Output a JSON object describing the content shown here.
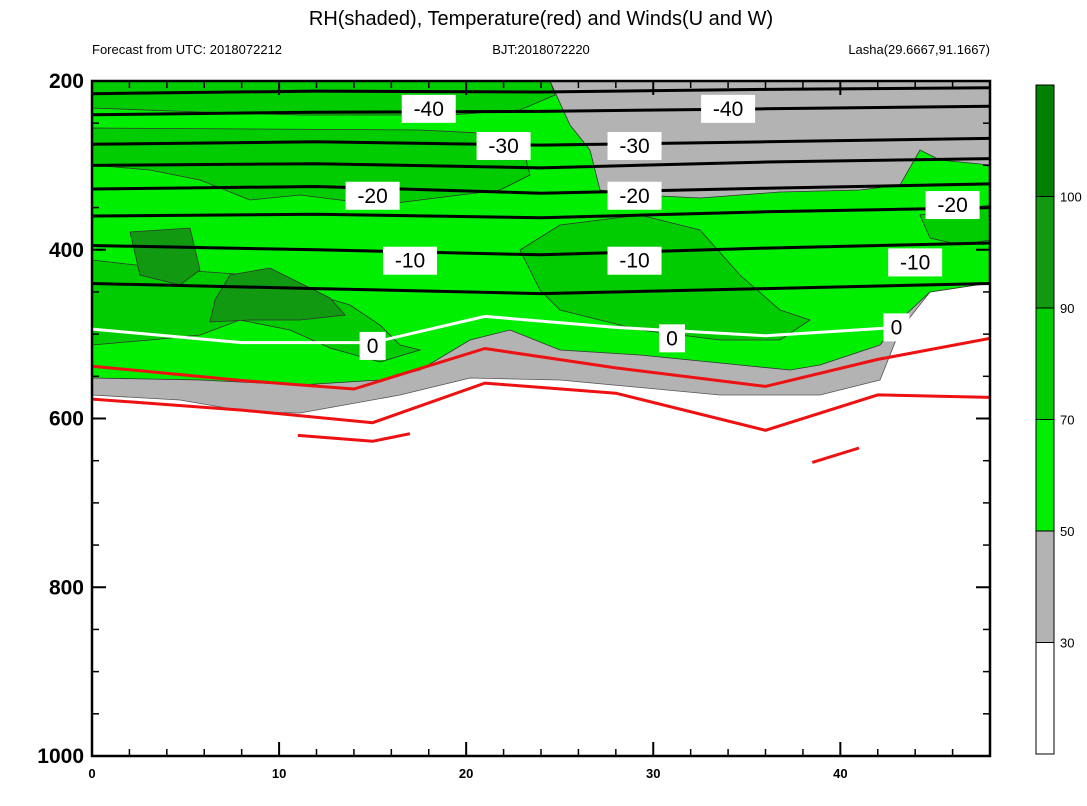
{
  "title": "RH(shaded), Temperature(red) and Winds(U and W)",
  "header": {
    "left": "Forecast from UTC: 2018072212",
    "center": "BJT:2018072220",
    "right": "Lasha(29.6667,91.1667)"
  },
  "chart_data": {
    "type": "contour",
    "x_range": [
      0,
      48
    ],
    "y_range": [
      200,
      1000
    ],
    "y_reversed": true,
    "x_ticks": [
      0,
      10,
      20,
      30,
      40
    ],
    "y_ticks": [
      200,
      400,
      600,
      800,
      1000
    ],
    "colorbar": {
      "ticks": [
        30,
        50,
        70,
        90,
        100
      ],
      "colors": [
        "#ffffff",
        "#b3b3b3",
        "#00ee00",
        "#00cc00",
        "#119911",
        "#008000"
      ]
    },
    "temperature_isotherms": [
      {
        "label": "-40",
        "points": [
          [
            0,
            215
          ],
          [
            12,
            212
          ],
          [
            24,
            213
          ],
          [
            36,
            210
          ],
          [
            48,
            208
          ]
        ],
        "label_at": [
          18,
          233
        ],
        "color": "#000000"
      },
      {
        "label": "-40",
        "points": [
          [
            0,
            240
          ],
          [
            12,
            237
          ],
          [
            24,
            236
          ],
          [
            36,
            233
          ],
          [
            48,
            230
          ]
        ],
        "label_at": [
          34,
          233
        ],
        "color": "#000000"
      },
      {
        "label": "-30",
        "points": [
          [
            0,
            275
          ],
          [
            12,
            272
          ],
          [
            24,
            276
          ],
          [
            36,
            272
          ],
          [
            48,
            268
          ]
        ],
        "label_at": [
          22,
          277
        ],
        "color": "#000000"
      },
      {
        "label": "-30",
        "points": [
          [
            0,
            300
          ],
          [
            12,
            298
          ],
          [
            24,
            303
          ],
          [
            36,
            296
          ],
          [
            48,
            292
          ]
        ],
        "label_at": [
          29,
          277
        ],
        "color": "#000000"
      },
      {
        "label": "-20",
        "points": [
          [
            0,
            328
          ],
          [
            12,
            325
          ],
          [
            24,
            333
          ],
          [
            36,
            327
          ],
          [
            48,
            322
          ]
        ],
        "label_at": [
          15,
          336
        ],
        "color": "#000000"
      },
      {
        "label": "-20",
        "points": [
          [
            0,
            360
          ],
          [
            12,
            358
          ],
          [
            24,
            362
          ],
          [
            36,
            355
          ],
          [
            48,
            350
          ]
        ],
        "label_at": [
          29,
          336
        ],
        "color": "#000000"
      },
      {
        "label": "-20",
        "points": [
          [
            0,
            395
          ],
          [
            12,
            400
          ],
          [
            24,
            406
          ],
          [
            36,
            398
          ],
          [
            48,
            392
          ]
        ],
        "label_at": [
          46,
          347
        ],
        "color": "#000000"
      },
      {
        "label": "-10",
        "points": [
          [
            0,
            440
          ],
          [
            12,
            446
          ],
          [
            24,
            452
          ],
          [
            36,
            446
          ],
          [
            48,
            440
          ]
        ],
        "label_at": [
          17,
          413
        ],
        "color": "#000000"
      },
      {
        "label": "-10",
        "points": [
          [
            0,
            440
          ],
          [
            12,
            446
          ],
          [
            24,
            452
          ],
          [
            36,
            446
          ],
          [
            48,
            440
          ]
        ],
        "label_at": [
          29,
          413
        ],
        "color": "#000000"
      },
      {
        "label": "-10",
        "points": [
          [
            0,
            440
          ],
          [
            12,
            446
          ],
          [
            24,
            452
          ],
          [
            36,
            446
          ],
          [
            48,
            440
          ]
        ],
        "label_at": [
          44,
          415
        ],
        "color": "#000000"
      },
      {
        "label": "0",
        "points": [
          [
            0,
            494
          ],
          [
            8,
            510
          ],
          [
            15,
            510
          ],
          [
            21,
            479
          ],
          [
            28,
            492
          ],
          [
            36,
            502
          ],
          [
            43,
            492
          ],
          [
            48,
            478
          ]
        ],
        "label_at": [
          15,
          514
        ],
        "color": "#ffffff"
      },
      {
        "label": "0",
        "points": [
          [
            0,
            494
          ],
          [
            8,
            510
          ],
          [
            15,
            510
          ],
          [
            21,
            479
          ],
          [
            28,
            492
          ],
          [
            36,
            502
          ],
          [
            43,
            492
          ],
          [
            48,
            478
          ]
        ],
        "label_at": [
          31,
          505
        ],
        "color": "#ffffff"
      },
      {
        "label": "0",
        "points": [
          [
            0,
            494
          ],
          [
            8,
            510
          ],
          [
            15,
            510
          ],
          [
            21,
            479
          ],
          [
            28,
            492
          ],
          [
            36,
            502
          ],
          [
            43,
            492
          ],
          [
            48,
            478
          ]
        ],
        "label_at": [
          43,
          492
        ],
        "color": "#ffffff"
      }
    ],
    "red_isotherms": [
      {
        "points": [
          [
            0,
            538
          ],
          [
            8,
            555
          ],
          [
            14,
            565
          ],
          [
            21,
            517
          ],
          [
            28,
            540
          ],
          [
            36,
            562
          ],
          [
            42,
            530
          ],
          [
            48,
            505
          ]
        ]
      },
      {
        "points": [
          [
            0,
            577
          ],
          [
            8,
            590
          ],
          [
            15,
            605
          ],
          [
            21,
            558
          ],
          [
            28,
            570
          ],
          [
            36,
            614
          ],
          [
            42,
            572
          ],
          [
            48,
            575
          ]
        ]
      },
      {
        "points": [
          [
            11,
            620
          ],
          [
            15,
            627
          ],
          [
            17,
            618
          ]
        ]
      },
      {
        "points": [
          [
            38.5,
            652
          ],
          [
            41,
            635
          ]
        ]
      }
    ]
  }
}
